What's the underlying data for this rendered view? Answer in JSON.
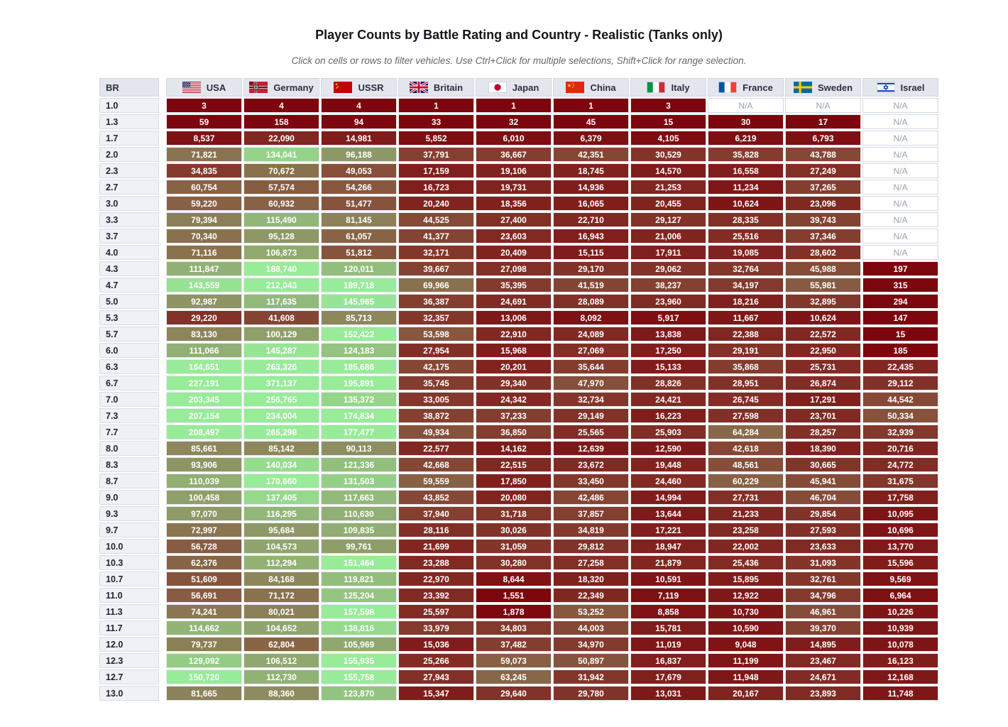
{
  "page": {
    "title": "Player Counts by Battle Rating and Country - Realistic (Tanks only)",
    "subtitle": "Click on cells or rows to filter vehicles. Use Ctrl+Click for multiple selections, Shift+Click for range selection."
  },
  "chart_data": {
    "type": "heatmap",
    "title": "Player Counts by Battle Rating and Country - Realistic (Tanks only)",
    "row_header": "BR",
    "na_label": "N/A",
    "color_scale": {
      "low_color": "#7d050d",
      "high_color": "#98eb98",
      "text_color": "#ffffff",
      "max_value": 150000
    },
    "columns": [
      {
        "id": "usa",
        "label": "USA"
      },
      {
        "id": "germany",
        "label": "Germany"
      },
      {
        "id": "ussr",
        "label": "USSR"
      },
      {
        "id": "britain",
        "label": "Britain"
      },
      {
        "id": "japan",
        "label": "Japan"
      },
      {
        "id": "china",
        "label": "China"
      },
      {
        "id": "italy",
        "label": "Italy"
      },
      {
        "id": "france",
        "label": "France"
      },
      {
        "id": "sweden",
        "label": "Sweden"
      },
      {
        "id": "israel",
        "label": "Israel"
      }
    ],
    "rows": [
      {
        "br": "1.0",
        "values": [
          3,
          4,
          4,
          1,
          1,
          1,
          3,
          null,
          null,
          null
        ]
      },
      {
        "br": "1.3",
        "values": [
          59,
          158,
          94,
          33,
          32,
          45,
          15,
          30,
          17,
          null
        ]
      },
      {
        "br": "1.7",
        "values": [
          8537,
          22090,
          14981,
          5852,
          6010,
          6379,
          4105,
          6219,
          6793,
          null
        ]
      },
      {
        "br": "2.0",
        "values": [
          71821,
          134041,
          96188,
          37791,
          36667,
          42351,
          30529,
          35828,
          43788,
          null
        ]
      },
      {
        "br": "2.3",
        "values": [
          34835,
          70672,
          49053,
          17159,
          19106,
          18745,
          14570,
          16558,
          27249,
          null
        ]
      },
      {
        "br": "2.7",
        "values": [
          60754,
          57574,
          54266,
          16723,
          19731,
          14936,
          21253,
          11234,
          37265,
          null
        ]
      },
      {
        "br": "3.0",
        "values": [
          59220,
          60932,
          51477,
          20240,
          18356,
          16065,
          20455,
          10624,
          23096,
          null
        ]
      },
      {
        "br": "3.3",
        "values": [
          79394,
          115490,
          81145,
          44525,
          27400,
          22710,
          29127,
          28335,
          39743,
          null
        ]
      },
      {
        "br": "3.7",
        "values": [
          70340,
          95128,
          61057,
          41377,
          23603,
          16943,
          21006,
          25516,
          37346,
          null
        ]
      },
      {
        "br": "4.0",
        "values": [
          71116,
          106873,
          51812,
          32171,
          20409,
          15115,
          17911,
          19085,
          28602,
          null
        ]
      },
      {
        "br": "4.3",
        "values": [
          111847,
          188740,
          120011,
          39667,
          27098,
          29170,
          29062,
          32764,
          45988,
          197
        ]
      },
      {
        "br": "4.7",
        "values": [
          143559,
          212043,
          189718,
          69966,
          35395,
          41519,
          38237,
          34197,
          55981,
          315
        ]
      },
      {
        "br": "5.0",
        "values": [
          92987,
          117635,
          145965,
          36387,
          24691,
          28089,
          23960,
          18216,
          32895,
          294
        ]
      },
      {
        "br": "5.3",
        "values": [
          29220,
          41608,
          85713,
          32357,
          13006,
          8092,
          5917,
          11667,
          10624,
          147
        ]
      },
      {
        "br": "5.7",
        "values": [
          83130,
          100129,
          152422,
          53598,
          22910,
          24089,
          13838,
          22388,
          22572,
          15
        ]
      },
      {
        "br": "6.0",
        "values": [
          111066,
          145287,
          124183,
          27954,
          15968,
          27069,
          17250,
          29191,
          22950,
          185
        ]
      },
      {
        "br": "6.3",
        "values": [
          164651,
          263326,
          185686,
          42175,
          20201,
          35644,
          15133,
          35868,
          25731,
          22435
        ]
      },
      {
        "br": "6.7",
        "values": [
          227191,
          371137,
          195891,
          35745,
          29340,
          47970,
          28826,
          28951,
          26874,
          29112
        ]
      },
      {
        "br": "7.0",
        "values": [
          203345,
          256765,
          135372,
          33005,
          24342,
          32734,
          24421,
          26745,
          17291,
          44542
        ]
      },
      {
        "br": "7.3",
        "values": [
          207154,
          234004,
          174834,
          38872,
          37233,
          29149,
          16223,
          27598,
          23701,
          50334
        ]
      },
      {
        "br": "7.7",
        "values": [
          208497,
          265298,
          177477,
          49934,
          36850,
          25565,
          25903,
          64284,
          28257,
          32939
        ]
      },
      {
        "br": "8.0",
        "values": [
          85661,
          85142,
          90113,
          22577,
          14162,
          12639,
          12590,
          42618,
          18390,
          20716
        ]
      },
      {
        "br": "8.3",
        "values": [
          93906,
          140034,
          121336,
          42668,
          22515,
          23672,
          19448,
          48561,
          30665,
          24772
        ]
      },
      {
        "br": "8.7",
        "values": [
          110039,
          170660,
          131503,
          59559,
          17850,
          33450,
          24460,
          60229,
          45941,
          31675
        ]
      },
      {
        "br": "9.0",
        "values": [
          100458,
          137405,
          117663,
          43852,
          20080,
          42486,
          14994,
          27731,
          46704,
          17758
        ]
      },
      {
        "br": "9.3",
        "values": [
          97070,
          116295,
          110630,
          37940,
          31718,
          37857,
          13644,
          21233,
          29854,
          10095
        ]
      },
      {
        "br": "9.7",
        "values": [
          72997,
          95684,
          109835,
          28116,
          30026,
          34819,
          17221,
          23258,
          27593,
          10696
        ]
      },
      {
        "br": "10.0",
        "values": [
          56728,
          104573,
          99761,
          21699,
          31059,
          29812,
          18947,
          22002,
          23633,
          13770
        ]
      },
      {
        "br": "10.3",
        "values": [
          62376,
          112294,
          151464,
          23288,
          30280,
          27258,
          21879,
          25436,
          31093,
          15596
        ]
      },
      {
        "br": "10.7",
        "values": [
          51609,
          84168,
          119821,
          22970,
          8644,
          18320,
          10591,
          15895,
          32761,
          9569
        ]
      },
      {
        "br": "11.0",
        "values": [
          56691,
          71172,
          125204,
          23392,
          1551,
          22349,
          7119,
          12922,
          34796,
          6964
        ]
      },
      {
        "br": "11.3",
        "values": [
          74241,
          80021,
          157598,
          25597,
          1878,
          53252,
          8858,
          10730,
          46961,
          10226
        ]
      },
      {
        "br": "11.7",
        "values": [
          114662,
          104652,
          138816,
          33979,
          34803,
          44003,
          15781,
          10590,
          39370,
          10939
        ]
      },
      {
        "br": "12.0",
        "values": [
          79737,
          62804,
          105969,
          15036,
          37482,
          34970,
          11019,
          9048,
          14895,
          10078
        ]
      },
      {
        "br": "12.3",
        "values": [
          129092,
          106512,
          155935,
          25266,
          59073,
          50897,
          16837,
          11199,
          23467,
          16123
        ]
      },
      {
        "br": "12.7",
        "values": [
          150720,
          112730,
          155758,
          27943,
          63245,
          31942,
          17679,
          11948,
          24671,
          12168
        ]
      },
      {
        "br": "13.0",
        "values": [
          81665,
          88360,
          123870,
          15347,
          29640,
          29780,
          13031,
          20167,
          23893,
          11748
        ]
      }
    ]
  }
}
